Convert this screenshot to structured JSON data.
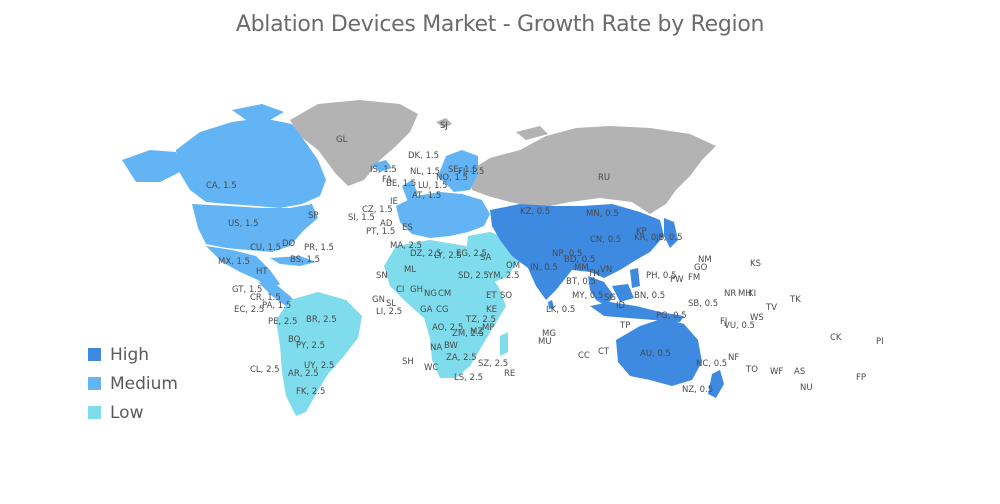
{
  "title": "Ablation Devices Market - Growth Rate by Region",
  "legend": [
    {
      "label": "High",
      "color": "#3d8ae0"
    },
    {
      "label": "Medium",
      "color": "#62b4f5"
    },
    {
      "label": "Low",
      "color": "#7fdcec"
    }
  ],
  "no_data_color": "#b3b3b3",
  "region_labels": [
    "GL",
    "SJ",
    "RU",
    "CA, 1.5",
    "US, 1.5",
    "SP",
    "MX, 1.5",
    "CU, 1.5",
    "DO",
    "PR, 1.5",
    "BS, 1.5",
    "HT",
    "GT, 1.5",
    "CR, 1.5",
    "PA, 1.5",
    "EC, 2.5",
    "PE, 2.5",
    "BR, 2.5",
    "BO",
    "PY, 2.5",
    "UY, 2.5",
    "AR, 2.5",
    "CL, 2.5",
    "FK, 2.5",
    "IS, 1.5",
    "DK, 1.5",
    "NL, 1.5",
    "NO, 1.5",
    "SE, 1.5",
    "FI, 1.5",
    "FA",
    "BE, 1.5",
    "LU, 1.5",
    "IE",
    "CZ, 1.5",
    "AT, 1.5",
    "SI, 1.5",
    "AD",
    "PT, 1.5",
    "ES",
    "MA, 2.5",
    "DZ, 2.5",
    "LY, 2.5",
    "EG, 2.5",
    "SA",
    "YM, 2.5",
    "OM",
    "SN",
    "ML",
    "GN",
    "SL",
    "LI, 2.5",
    "CI",
    "GH",
    "NG",
    "CM",
    "GA",
    "CG",
    "AO, 2.5",
    "ZM, 2.5",
    "MZ",
    "MP",
    "NA",
    "BW",
    "ZA, 2.5",
    "SZ, 2.5",
    "LS, 2.5",
    "MG",
    "MU",
    "RE",
    "SH",
    "WC",
    "KE",
    "TZ, 2.5",
    "SO",
    "ET",
    "SD, 2.5",
    "KZ, 0.5",
    "MN, 0.5",
    "CN, 0.5",
    "KP",
    "KR, 0.5",
    "JP, 0.5",
    "IN, 0.5",
    "NP, 0.5",
    "BD, 0.5",
    "LK, 0.5",
    "MM",
    "TH",
    "VN",
    "PH, 0.5",
    "MY, 0.5",
    "SG",
    "ID",
    "BN, 0.5",
    "TP",
    "PG, 0.5",
    "AU, 0.5",
    "NZ, 0.5",
    "NC, 0.5",
    "NF",
    "SB, 0.5",
    "VU, 0.5",
    "FJ",
    "WS",
    "TO",
    "WF",
    "AS",
    "NU",
    "CK",
    "PI",
    "FP",
    "TV",
    "TK",
    "KS",
    "NM",
    "GO",
    "PW",
    "FM",
    "NR",
    "MH",
    "KI",
    "CC",
    "CT",
    "BT, 0.5"
  ]
}
